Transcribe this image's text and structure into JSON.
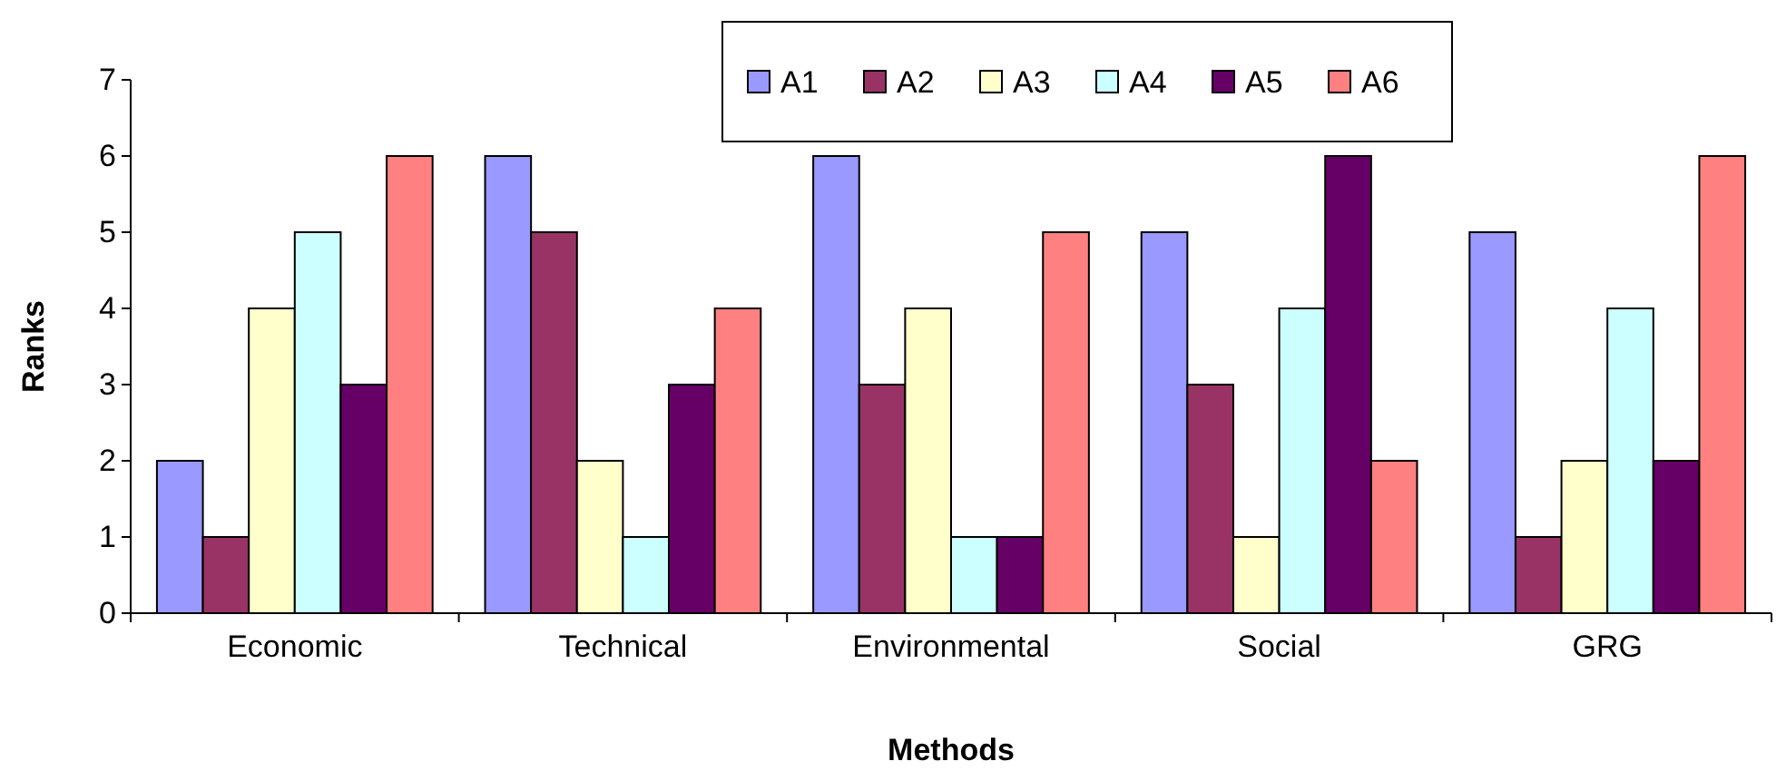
{
  "chart_data": {
    "type": "bar",
    "xlabel": "Methods",
    "ylabel": "Ranks",
    "categories": [
      "Economic",
      "Technical",
      "Environmental",
      "Social",
      "GRG"
    ],
    "series": [
      {
        "name": "A1",
        "color": "#9999ff",
        "values": [
          2,
          6,
          6,
          5,
          5
        ]
      },
      {
        "name": "A2",
        "color": "#993366",
        "values": [
          1,
          5,
          3,
          3,
          1
        ]
      },
      {
        "name": "A3",
        "color": "#ffffcc",
        "values": [
          4,
          2,
          4,
          1,
          2
        ]
      },
      {
        "name": "A4",
        "color": "#ccffff",
        "values": [
          5,
          1,
          1,
          4,
          4
        ]
      },
      {
        "name": "A5",
        "color": "#660066",
        "values": [
          3,
          3,
          1,
          6,
          2
        ]
      },
      {
        "name": "A6",
        "color": "#ff8080",
        "values": [
          6,
          4,
          5,
          2,
          6
        ]
      }
    ],
    "ylim": [
      0,
      7
    ],
    "yticks": [
      0,
      1,
      2,
      3,
      4,
      5,
      6,
      7
    ],
    "grid": false,
    "legend": "top"
  }
}
